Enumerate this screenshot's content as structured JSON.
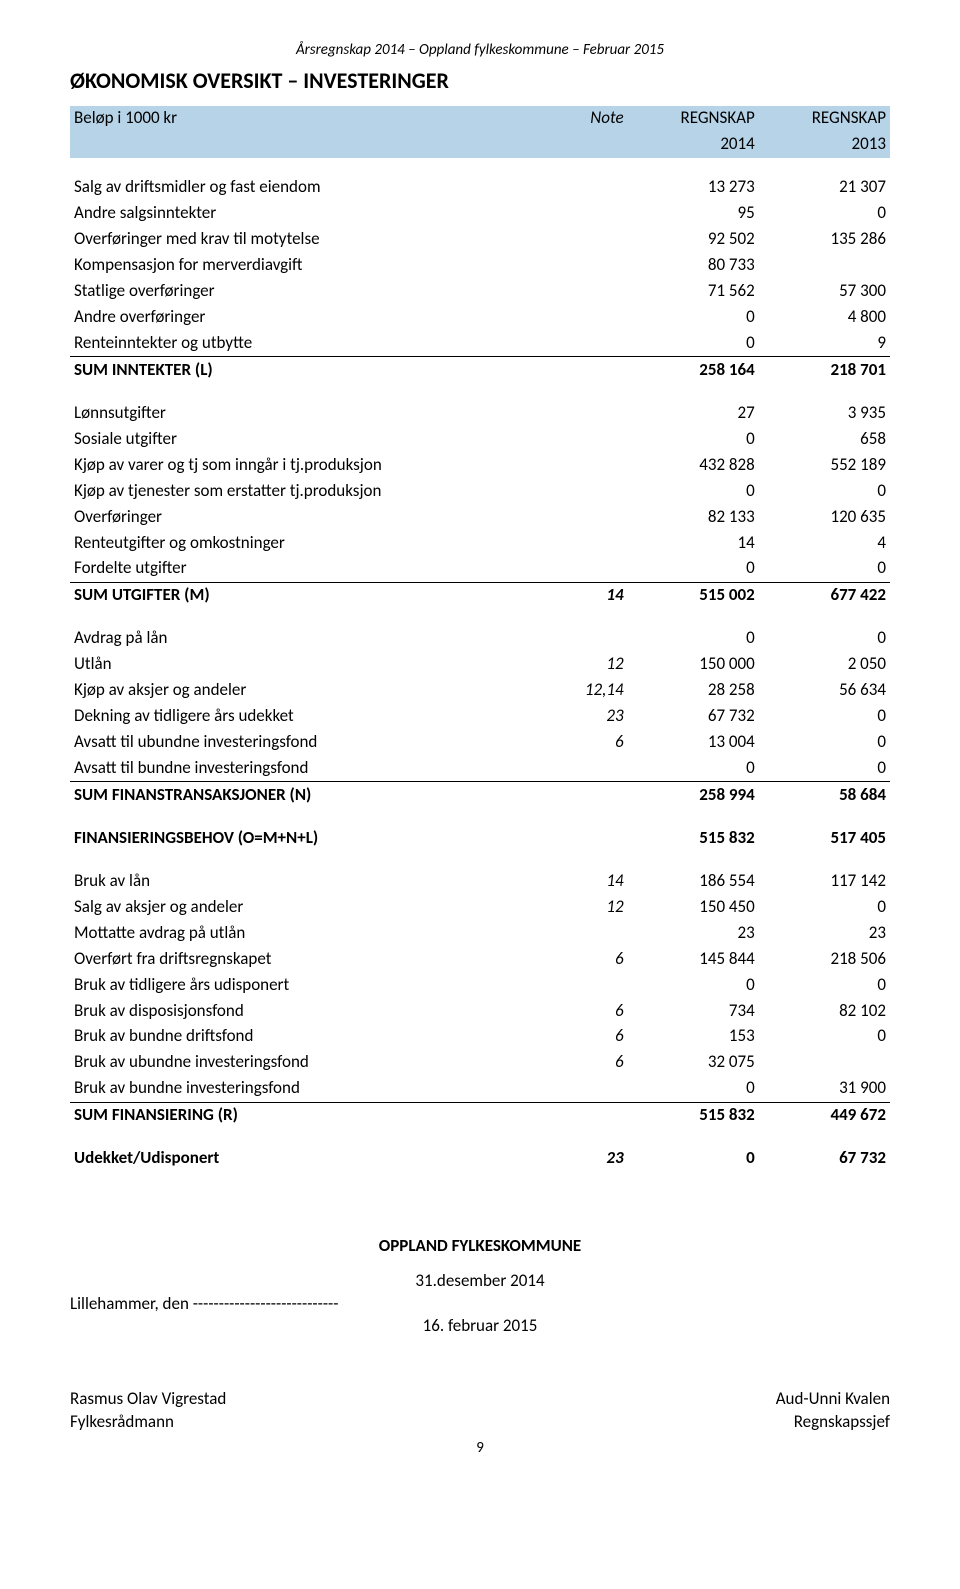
{
  "doc_header": "Årsregnskap 2014 – Oppland fylkeskommune – Februar 2015",
  "title": "ØKONOMISK OVERSIKT – INVESTERINGER",
  "colors": {
    "header_bg": "#b7d3e8",
    "text": "#000000",
    "bg": "#ffffff",
    "rule": "#000000"
  },
  "table": {
    "head": {
      "label": "Beløp i 1000 kr",
      "note": "Note",
      "colA": "REGNSKAP",
      "colB": "REGNSKAP",
      "yearA": "2014",
      "yearB": "2013"
    },
    "groups": [
      {
        "rows": [
          {
            "label": "Salg av driftsmidler og fast eiendom",
            "note": "",
            "a": "13 273",
            "b": "21 307"
          },
          {
            "label": "Andre salgsinntekter",
            "note": "",
            "a": "95",
            "b": "0"
          },
          {
            "label": "Overføringer med krav til motytelse",
            "note": "",
            "a": "92 502",
            "b": "135 286"
          },
          {
            "label": "Kompensasjon for merverdiavgift",
            "note": "",
            "a": "80 733",
            "b": ""
          },
          {
            "label": "Statlige overføringer",
            "note": "",
            "a": "71 562",
            "b": "57 300"
          },
          {
            "label": "Andre overføringer",
            "note": "",
            "a": "0",
            "b": "4 800"
          },
          {
            "label": "Renteinntekter og utbytte",
            "note": "",
            "a": "0",
            "b": "9"
          }
        ],
        "sum": {
          "label": "SUM INNTEKTER (L)",
          "note": "",
          "a": "258 164",
          "b": "218 701"
        }
      },
      {
        "rows": [
          {
            "label": "Lønnsutgifter",
            "note": "",
            "a": "27",
            "b": "3 935"
          },
          {
            "label": "Sosiale utgifter",
            "note": "",
            "a": "0",
            "b": "658"
          },
          {
            "label": "Kjøp av varer og tj som inngår i tj.produksjon",
            "note": "",
            "a": "432 828",
            "b": "552 189"
          },
          {
            "label": "Kjøp av tjenester som erstatter tj.produksjon",
            "note": "",
            "a": "0",
            "b": "0"
          },
          {
            "label": "Overføringer",
            "note": "",
            "a": "82 133",
            "b": "120 635"
          },
          {
            "label": "Renteutgifter og omkostninger",
            "note": "",
            "a": "14",
            "b": "4"
          },
          {
            "label": "Fordelte utgifter",
            "note": "",
            "a": "0",
            "b": "0"
          }
        ],
        "sum": {
          "label": "SUM UTGIFTER  (M)",
          "note": "14",
          "a": "515 002",
          "b": "677 422"
        }
      },
      {
        "rows": [
          {
            "label": "Avdrag på lån",
            "note": "",
            "a": "0",
            "b": "0"
          },
          {
            "label": "Utlån",
            "note": "12",
            "a": "150 000",
            "b": "2 050"
          },
          {
            "label": "Kjøp av aksjer og andeler",
            "note": "12,14",
            "a": "28 258",
            "b": "56 634"
          },
          {
            "label": "Dekning av tidligere års udekket",
            "note": "23",
            "a": "67 732",
            "b": "0"
          },
          {
            "label": "Avsatt til ubundne investeringsfond",
            "note": "6",
            "a": "13 004",
            "b": "0"
          },
          {
            "label": "Avsatt til bundne investeringsfond",
            "note": "",
            "a": "0",
            "b": "0"
          }
        ],
        "sum": {
          "label": "SUM FINANSTRANSAKSJONER  (N)",
          "note": "",
          "a": "258 994",
          "b": "58 684"
        }
      },
      {
        "rows": [],
        "sum_plain": {
          "label": "FINANSIERINGSBEHOV  (O=M+N+L)",
          "note": "",
          "a": "515 832",
          "b": "517 405"
        }
      },
      {
        "rows": [
          {
            "label": "Bruk av lån",
            "note": "14",
            "a": "186 554",
            "b": "117 142"
          },
          {
            "label": "Salg av aksjer og andeler",
            "note": "12",
            "a": "150 450",
            "b": "0"
          },
          {
            "label": "Mottatte avdrag på utlån",
            "note": "",
            "a": "23",
            "b": "23"
          },
          {
            "label": "Overført fra driftsregnskapet",
            "note": "6",
            "a": "145 844",
            "b": "218 506"
          },
          {
            "label": "Bruk av tidligere års udisponert",
            "note": "",
            "a": "0",
            "b": "0"
          },
          {
            "label": "Bruk av disposisjonsfond",
            "note": "6",
            "a": "734",
            "b": "82 102"
          },
          {
            "label": "Bruk av bundne driftsfond",
            "note": "6",
            "a": "153",
            "b": "0"
          },
          {
            "label": "Bruk av ubundne investeringsfond",
            "note": "6",
            "a": "32 075",
            "b": ""
          },
          {
            "label": "Bruk av bundne investeringsfond",
            "note": "",
            "a": "0",
            "b": "31 900"
          }
        ],
        "sum": {
          "label": "SUM FINANSIERING  (R)",
          "note": "",
          "a": "515 832",
          "b": "449 672"
        }
      },
      {
        "rows": [],
        "sum_plain": {
          "label": "Udekket/Udisponert",
          "note": "23",
          "a": "0",
          "b": "67 732"
        }
      }
    ]
  },
  "footer": {
    "org": "OPPLAND FYLKESKOMMUNE",
    "date1": "31.desember 2014",
    "place_line": "Lillehammer, den ----------------------------",
    "date2": "16. februar 2015",
    "left_name": "Rasmus Olav Vigrestad",
    "left_title": "Fylkesrådmann",
    "right_name": "Aud-Unni Kvalen",
    "right_title": "Regnskapssjef",
    "page_number": "9"
  }
}
